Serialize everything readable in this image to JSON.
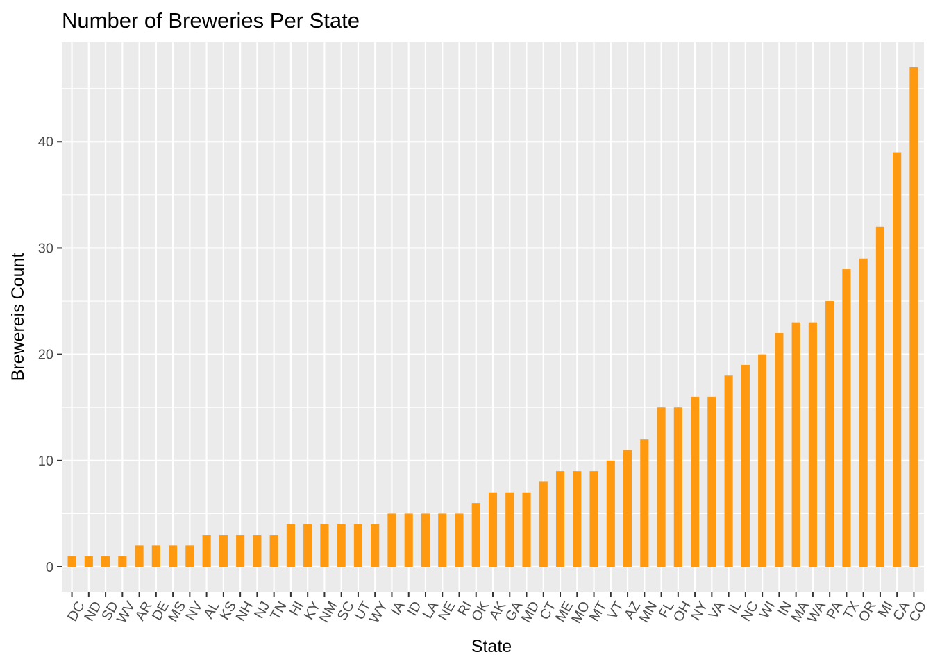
{
  "chart_data": {
    "type": "bar",
    "title": "Number of Breweries Per State",
    "xlabel": "State",
    "ylabel": "Brewereis Count",
    "categories": [
      "DC",
      "ND",
      "SD",
      "WV",
      "AR",
      "DE",
      "MS",
      "NV",
      "AL",
      "KS",
      "NH",
      "NJ",
      "TN",
      "HI",
      "KY",
      "NM",
      "SC",
      "UT",
      "WY",
      "IA",
      "ID",
      "LA",
      "NE",
      "RI",
      "OK",
      "AK",
      "GA",
      "MD",
      "CT",
      "ME",
      "MO",
      "MT",
      "VT",
      "AZ",
      "MN",
      "FL",
      "OH",
      "NY",
      "VA",
      "IL",
      "NC",
      "WI",
      "IN",
      "MA",
      "WA",
      "PA",
      "TX",
      "OR",
      "MI",
      "CA",
      "CO"
    ],
    "values": [
      1,
      1,
      1,
      1,
      2,
      2,
      2,
      2,
      3,
      3,
      3,
      3,
      3,
      4,
      4,
      4,
      4,
      4,
      4,
      5,
      5,
      5,
      5,
      5,
      6,
      7,
      7,
      7,
      8,
      9,
      9,
      9,
      10,
      11,
      12,
      15,
      15,
      16,
      16,
      18,
      19,
      20,
      22,
      23,
      23,
      25,
      28,
      29,
      32,
      39,
      47
    ],
    "ylim": [
      -2.35,
      49.35
    ],
    "yticks": [
      0,
      10,
      20,
      30,
      40
    ],
    "yticks_minor": [
      5,
      15,
      25,
      35,
      45
    ],
    "grid": true,
    "legend": "none",
    "colors": {
      "bar": "#FF9910",
      "panel": "#EBEBEB",
      "grid": "#FFFFFF",
      "tick_text": "#4D4D4D",
      "tick_mark": "#333333"
    }
  }
}
